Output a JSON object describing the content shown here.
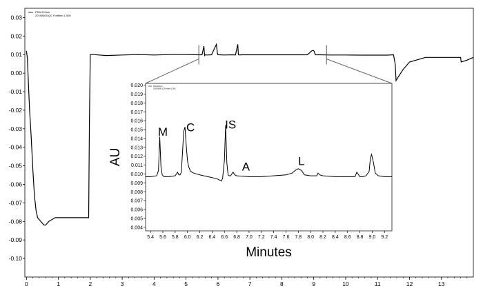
{
  "chart_data": [
    {
      "type": "line",
      "legend": [
        "PDA 224nm",
        "20190605 QC Fortified 1.000"
      ],
      "x_ticks": [
        0,
        1,
        2,
        3,
        4,
        5,
        6,
        7,
        8,
        9,
        10,
        11,
        12,
        13
      ],
      "y_ticks": [
        "0.03",
        "0.02",
        "0.01",
        "0.00",
        "-0.01",
        "-0.02",
        "-0.03",
        "-0.04",
        "-0.05",
        "-0.06",
        "-0.07",
        "-0.08",
        "-0.09",
        "-0.10"
      ],
      "xlim": [
        -0.05,
        14.0
      ],
      "ylim": [
        -0.11,
        0.035
      ],
      "series": [
        {
          "x": [
            0.0,
            0.03,
            0.06,
            0.1,
            0.15,
            0.2,
            0.25,
            0.3,
            0.35,
            0.4,
            0.45,
            0.5,
            0.55,
            0.6,
            0.65,
            0.7,
            0.8,
            0.9,
            1.0,
            1.5,
            1.95,
            1.97,
            2.0,
            2.1,
            2.5,
            3.0,
            3.5,
            4.0,
            4.5,
            5.0,
            5.4,
            5.5,
            5.56,
            5.58,
            5.6,
            5.65,
            5.8,
            5.95,
            5.98,
            6.0,
            6.05,
            6.2,
            6.45,
            6.55,
            6.62,
            6.64,
            6.67,
            6.75,
            7.0,
            7.5,
            8.0,
            8.5,
            8.8,
            8.95,
            9.0,
            9.05,
            9.2,
            9.5,
            10.0,
            10.5,
            11.0,
            11.3,
            11.5,
            11.55,
            11.58,
            11.65,
            11.8,
            12.0,
            12.5,
            12.7,
            12.75,
            12.8,
            13.0,
            13.3,
            13.5,
            13.6,
            13.62,
            13.8,
            14.0
          ],
          "y": [
            0.012,
            0.008,
            -0.005,
            -0.02,
            -0.035,
            -0.052,
            -0.066,
            -0.074,
            -0.078,
            -0.079,
            -0.08,
            -0.081,
            -0.082,
            -0.082,
            -0.081,
            -0.08,
            -0.079,
            -0.078,
            -0.078,
            -0.078,
            -0.078,
            -0.03,
            0.01,
            0.01,
            0.0095,
            0.0098,
            0.01,
            0.0098,
            0.01,
            0.01,
            0.0099,
            0.0099,
            0.0145,
            0.0095,
            0.0099,
            0.0098,
            0.0099,
            0.0155,
            0.011,
            0.0099,
            0.0099,
            0.0098,
            0.0099,
            0.0098,
            0.0155,
            0.0099,
            0.0098,
            0.0099,
            0.0099,
            0.0099,
            0.0099,
            0.0099,
            0.0099,
            0.0122,
            0.0122,
            0.0099,
            0.0099,
            0.0098,
            0.0098,
            0.0097,
            0.0097,
            0.0097,
            0.0099,
            0.005,
            -0.004,
            -0.002,
            0.002,
            0.006,
            0.0085,
            0.0085,
            0.0085,
            0.0085,
            0.0085,
            0.0085,
            0.0085,
            0.0085,
            0.006,
            0.007,
            0.0085
          ]
        }
      ],
      "zoom_window": [
        5.4,
        9.4
      ]
    },
    {
      "type": "line",
      "legend": [
        "PDA 224nm",
        "20190605 QC Fortified 1.000"
      ],
      "xlabel": "Minutes",
      "ylabel": "AU",
      "x_ticks": [
        "5.4",
        "5.6",
        "5.8",
        "6.0",
        "6.2",
        "6.4",
        "6.6",
        "6.8",
        "7.0",
        "7.2",
        "7.4",
        "7.6",
        "7.8",
        "8.0",
        "8.2",
        "8.4",
        "8.6",
        "8.8",
        "9.0",
        "9.2"
      ],
      "y_ticks": [
        "0.020",
        "0.019",
        "0.018",
        "0.017",
        "0.016",
        "0.015",
        "0.014",
        "0.013",
        "0.012",
        "0.011",
        "0.010",
        "0.009",
        "0.008",
        "0.007",
        "0.006",
        "0.005",
        "0.004"
      ],
      "xlim": [
        5.32,
        9.32
      ],
      "ylim": [
        0.0036,
        0.0202
      ],
      "series": [
        {
          "x": [
            5.32,
            5.4,
            5.5,
            5.53,
            5.55,
            5.57,
            5.59,
            5.62,
            5.7,
            5.8,
            5.84,
            5.86,
            5.88,
            5.9,
            5.94,
            5.96,
            5.98,
            6.0,
            6.02,
            6.05,
            6.1,
            6.2,
            6.4,
            6.5,
            6.55,
            6.57,
            6.6,
            6.62,
            6.64,
            6.66,
            6.68,
            6.7,
            6.74,
            6.77,
            6.8,
            7.0,
            7.2,
            7.4,
            7.6,
            7.7,
            7.75,
            7.8,
            7.85,
            7.9,
            8.0,
            8.1,
            8.12,
            8.15,
            8.2,
            8.4,
            8.6,
            8.72,
            8.75,
            8.78,
            8.8,
            8.85,
            8.9,
            8.95,
            8.97,
            8.99,
            9.02,
            9.05,
            9.1,
            9.2,
            9.32
          ],
          "y": [
            0.0097,
            0.0097,
            0.0098,
            0.0104,
            0.0142,
            0.0108,
            0.0099,
            0.0097,
            0.0097,
            0.0098,
            0.0102,
            0.0099,
            0.0099,
            0.0102,
            0.0148,
            0.0153,
            0.0132,
            0.0115,
            0.0108,
            0.0103,
            0.0101,
            0.0099,
            0.0096,
            0.0094,
            0.0092,
            0.0095,
            0.0115,
            0.0155,
            0.0112,
            0.0099,
            0.0098,
            0.0098,
            0.0102,
            0.0099,
            0.0098,
            0.0097,
            0.0097,
            0.0098,
            0.0099,
            0.0101,
            0.0104,
            0.0106,
            0.0104,
            0.0099,
            0.0098,
            0.0098,
            0.0101,
            0.0099,
            0.0098,
            0.0097,
            0.0097,
            0.0097,
            0.0102,
            0.0099,
            0.0097,
            0.0097,
            0.0098,
            0.0103,
            0.0118,
            0.0122,
            0.0113,
            0.0101,
            0.0098,
            0.0097,
            0.0097
          ]
        }
      ],
      "peak_labels": [
        {
          "text": "M",
          "x": 5.6,
          "y": 0.0143
        },
        {
          "text": "C",
          "x": 6.05,
          "y": 0.0148
        },
        {
          "text": "IS",
          "x": 6.7,
          "y": 0.0151
        },
        {
          "text": "A",
          "x": 6.95,
          "y": 0.0104
        },
        {
          "text": "L",
          "x": 7.85,
          "y": 0.011
        }
      ]
    }
  ]
}
